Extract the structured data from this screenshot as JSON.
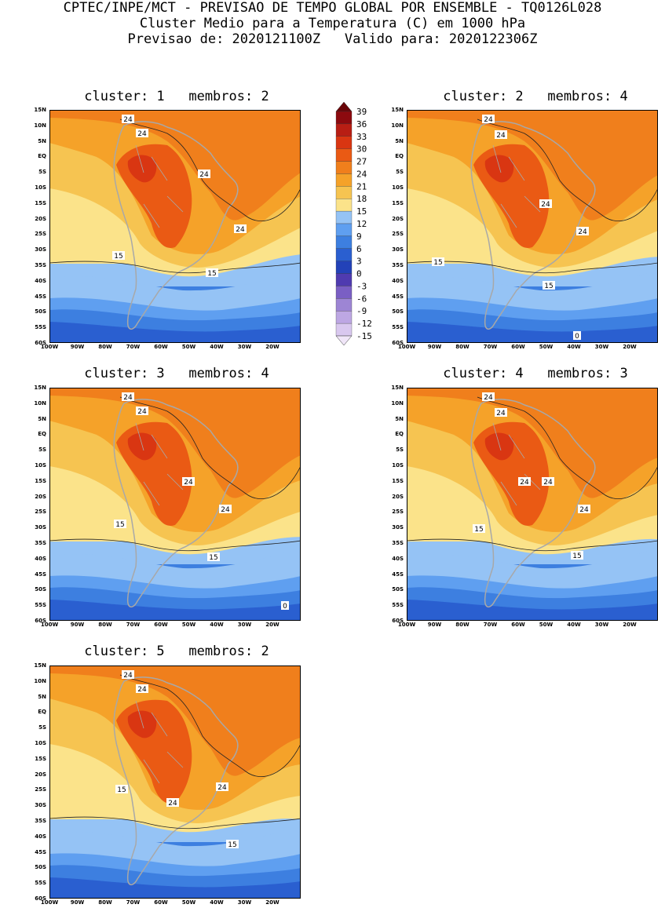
{
  "header": {
    "line1": "CPTEC/INPE/MCT - PREVISAO DE TEMPO GLOBAL POR ENSEMBLE - TQ0126L028",
    "line2": "Cluster Medio para a Temperatura (C) em 1000 hPa",
    "line3": "Previsao de: 2020121100Z   Valido para: 2020122306Z"
  },
  "panels": [
    {
      "title": "cluster: 1   membros: 2",
      "labels": [
        "24",
        "24",
        "24",
        "24",
        "15",
        "15"
      ]
    },
    {
      "title": "cluster: 2   membros: 4",
      "labels": [
        "24",
        "24",
        "24",
        "24",
        "15",
        "15",
        "0"
      ]
    },
    {
      "title": "cluster: 3   membros: 4",
      "labels": [
        "24",
        "24",
        "24",
        "24",
        "15",
        "15",
        "0"
      ]
    },
    {
      "title": "cluster: 4   membros: 3",
      "labels": [
        "24",
        "24",
        "24",
        "24",
        "24",
        "15",
        "15"
      ]
    },
    {
      "title": "cluster: 5   membros: 2",
      "labels": [
        "24",
        "24",
        "24",
        "24",
        "15",
        "15"
      ]
    }
  ],
  "lat_labels": [
    "15N",
    "10N",
    "5N",
    "EQ",
    "5S",
    "10S",
    "15S",
    "20S",
    "25S",
    "30S",
    "35S",
    "40S",
    "45S",
    "50S",
    "55S",
    "60S"
  ],
  "lon_labels": [
    "100W",
    "90W",
    "80W",
    "70W",
    "60W",
    "50W",
    "40W",
    "30W",
    "20W"
  ],
  "colorbar": {
    "ticks": [
      "39",
      "36",
      "33",
      "30",
      "27",
      "24",
      "21",
      "18",
      "15",
      "12",
      "9",
      "6",
      "3",
      "0",
      "-3",
      "-6",
      "-9",
      "-12",
      "-15"
    ],
    "colors": [
      "#f0e6f8",
      "#d9c8ef",
      "#bda7e3",
      "#9d85d4",
      "#7a5fc4",
      "#4f3bb0",
      "#2342b8",
      "#2a5fd0",
      "#3d7fe0",
      "#5f9ff0",
      "#95c3f5",
      "#fbe38a",
      "#f6c451",
      "#f5a229",
      "#f07f1c",
      "#ea5a14",
      "#d93612",
      "#b81e14",
      "#8c0a0f",
      "#6a0508"
    ],
    "map_fill_colors": {
      "c9": "#95c3f5",
      "c12": "#5f9ff0",
      "c6": "#3d7fe0",
      "c3": "#2a5fd0",
      "c0": "#2342b8",
      "cm3": "#4f3bb0",
      "c15": "#fbe38a",
      "c18": "#f6c451",
      "c21": "#f5a229",
      "c24": "#f07f1c",
      "c27": "#ea5a14",
      "c30": "#d93612"
    },
    "land_border_color": "#a8a8a8"
  }
}
